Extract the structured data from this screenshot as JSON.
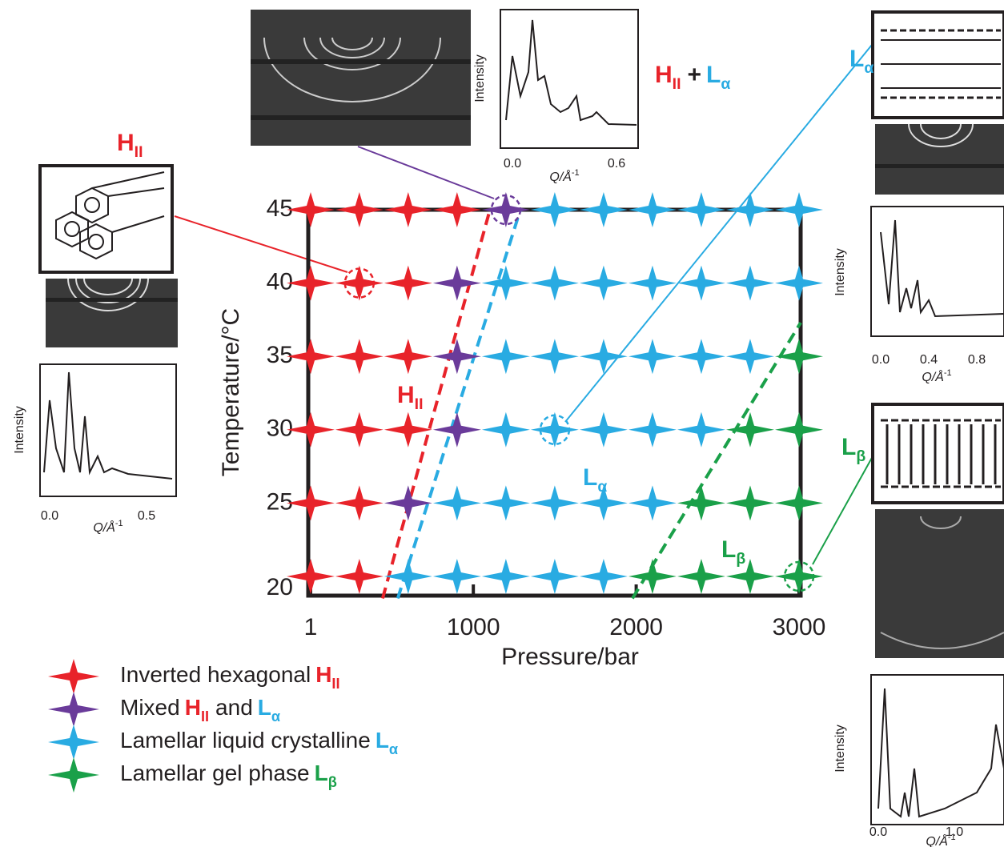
{
  "chart_data": {
    "type": "scatter",
    "xlabel": "Pressure/bar",
    "ylabel": "Temperature/°C",
    "xlim": [
      1,
      3000
    ],
    "ylim": [
      20,
      45
    ],
    "xticks": [
      1,
      1000,
      2000,
      3000
    ],
    "yticks": [
      20,
      25,
      30,
      35,
      40,
      45
    ],
    "phase_symbols": [
      {
        "text": "H",
        "sub": "II",
        "color": "#e8232a"
      },
      {
        "text": "L",
        "sub": "α",
        "color": "#29abe2"
      },
      {
        "text": "L",
        "sub": "β",
        "color": "#1aa049"
      }
    ],
    "plus": "+",
    "series": [
      {
        "name": "Inverted hexagonal",
        "symbols": [
          0
        ],
        "color": "#e8232a",
        "x": [
          1,
          300,
          600,
          900,
          1,
          300,
          600,
          1,
          300,
          600,
          1,
          300,
          600,
          1,
          300,
          1,
          300
        ],
        "y": [
          45,
          45,
          45,
          45,
          40,
          40,
          40,
          35,
          35,
          35,
          30,
          30,
          30,
          25,
          25,
          20,
          20
        ]
      },
      {
        "name": "Mixed",
        "conjunction": "and",
        "symbols": [
          0,
          1
        ],
        "color": "#6a3b9a",
        "x": [
          1200,
          900,
          900,
          900,
          600
        ],
        "y": [
          45,
          40,
          35,
          30,
          25
        ]
      },
      {
        "name": "Lamellar liquid crystalline",
        "symbols": [
          1
        ],
        "color": "#29abe2",
        "x": [
          1500,
          1800,
          2100,
          2400,
          2700,
          3000,
          1200,
          1500,
          1800,
          2100,
          2400,
          2700,
          3000,
          1200,
          1500,
          1800,
          2100,
          2400,
          2700,
          1200,
          1500,
          1800,
          2100,
          2400,
          900,
          1200,
          1500,
          1800,
          2100,
          600,
          900,
          1200,
          1500,
          1800
        ],
        "y": [
          45,
          45,
          45,
          45,
          45,
          45,
          40,
          40,
          40,
          40,
          40,
          40,
          40,
          35,
          35,
          35,
          35,
          35,
          35,
          30,
          30,
          30,
          30,
          30,
          25,
          25,
          25,
          25,
          25,
          20,
          20,
          20,
          20,
          20
        ]
      },
      {
        "name": "Lamellar gel phase",
        "symbols": [
          2
        ],
        "color": "#1aa049",
        "x": [
          3000,
          2700,
          3000,
          2400,
          2700,
          3000,
          2100,
          2400,
          2700,
          3000
        ],
        "y": [
          35,
          30,
          30,
          25,
          25,
          25,
          20,
          20,
          20,
          20
        ]
      }
    ],
    "boundaries": [
      {
        "color": "#e8232a",
        "x": [
          443,
          1102
        ],
        "y": [
          18.5,
          45
        ]
      },
      {
        "color": "#29abe2",
        "x": [
          536,
          1289
        ],
        "y": [
          18.5,
          45
        ]
      },
      {
        "color": "#1aa049",
        "x": [
          1977,
          3010
        ],
        "y": [
          18.5,
          37.3
        ]
      }
    ],
    "highlighted": [
      {
        "x": 300,
        "y": 40
      },
      {
        "x": 1200,
        "y": 45
      },
      {
        "x": 1500,
        "y": 30
      },
      {
        "x": 3000,
        "y": 20
      }
    ],
    "insets": [
      {
        "ylabel": "Intensity",
        "xlabel": "Q/Å",
        "xlabel_exp": "-1",
        "xticks": [
          "0.0",
          "0.5"
        ]
      },
      {
        "ylabel": "Intensity",
        "xlabel": "Q/Å",
        "xlabel_exp": "-1",
        "xticks": [
          "0.0",
          "0.6"
        ]
      },
      {
        "ylabel": "Intensity",
        "xlabel": "Q/Å",
        "xlabel_exp": "-1",
        "xticks": [
          "0.0",
          "0.4",
          "0.8"
        ]
      },
      {
        "ylabel": "Intensity",
        "xlabel": "Q/Å",
        "xlabel_exp": "-1",
        "xticks": [
          "0.0",
          "1.0"
        ]
      }
    ]
  }
}
